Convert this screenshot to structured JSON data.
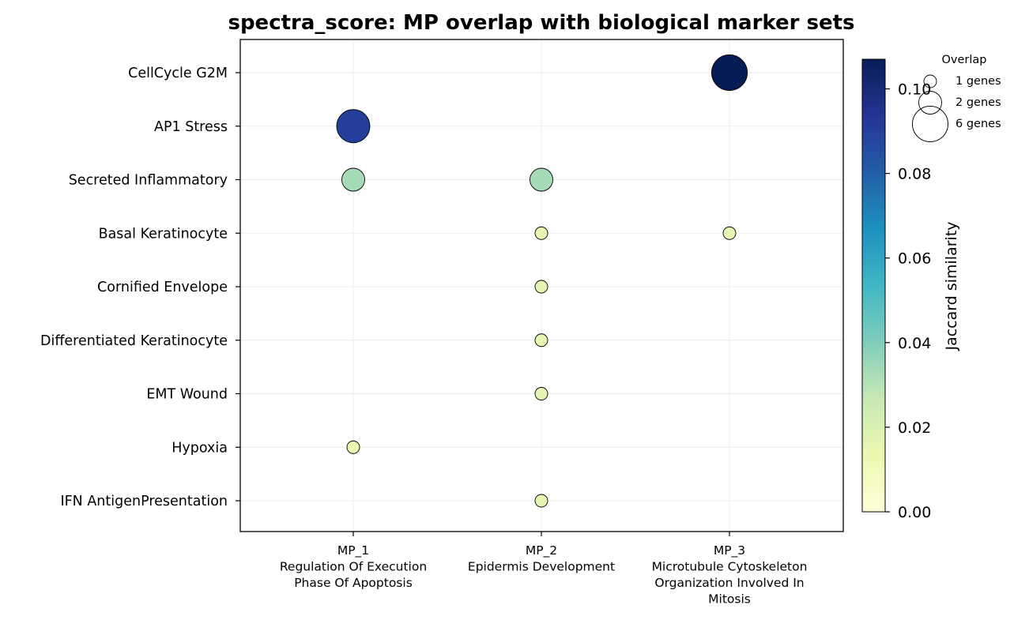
{
  "chart_data": {
    "type": "scatter",
    "title": "spectra_score: MP overlap with biological marker sets",
    "x_categories": [
      [
        "MP_1",
        "Regulation Of Execution",
        "Phase Of Apoptosis"
      ],
      [
        "MP_2",
        "Epidermis Development"
      ],
      [
        "MP_3",
        "Microtubule Cytoskeleton",
        "Organization Involved In",
        "Mitosis"
      ]
    ],
    "y_categories": [
      "CellCycle G2M",
      "AP1 Stress",
      "Secreted Inflammatory",
      "Basal Keratinocyte",
      "Cornified Envelope",
      "Differentiated Keratinocyte",
      "EMT Wound",
      "Hypoxia",
      "IFN AntigenPresentation"
    ],
    "points": [
      {
        "x": "MP_3",
        "y": "CellCycle G2M",
        "overlap_genes": 6,
        "jaccard": 0.107
      },
      {
        "x": "MP_1",
        "y": "AP1 Stress",
        "overlap_genes": 5,
        "jaccard": 0.09
      },
      {
        "x": "MP_1",
        "y": "Secreted Inflammatory",
        "overlap_genes": 2,
        "jaccard": 0.033
      },
      {
        "x": "MP_2",
        "y": "Secreted Inflammatory",
        "overlap_genes": 2,
        "jaccard": 0.033
      },
      {
        "x": "MP_2",
        "y": "Basal Keratinocyte",
        "overlap_genes": 1,
        "jaccard": 0.016
      },
      {
        "x": "MP_3",
        "y": "Basal Keratinocyte",
        "overlap_genes": 1,
        "jaccard": 0.016
      },
      {
        "x": "MP_2",
        "y": "Cornified Envelope",
        "overlap_genes": 1,
        "jaccard": 0.016
      },
      {
        "x": "MP_2",
        "y": "Differentiated Keratinocyte",
        "overlap_genes": 1,
        "jaccard": 0.016
      },
      {
        "x": "MP_2",
        "y": "EMT Wound",
        "overlap_genes": 1,
        "jaccard": 0.016
      },
      {
        "x": "MP_1",
        "y": "Hypoxia",
        "overlap_genes": 1,
        "jaccard": 0.013
      },
      {
        "x": "MP_2",
        "y": "IFN AntigenPresentation",
        "overlap_genes": 1,
        "jaccard": 0.016
      }
    ],
    "colorbar": {
      "label": "Jaccard similarity",
      "range": [
        0,
        0.107
      ],
      "ticks": [
        "0.00",
        "0.02",
        "0.04",
        "0.06",
        "0.08",
        "0.10"
      ],
      "colormap": "YlGnBu",
      "stops": [
        "#ffffd9",
        "#edf8b1",
        "#c7e9b4",
        "#7fcdbb",
        "#41b6c4",
        "#1d91c0",
        "#225ea8",
        "#253494",
        "#081d58"
      ]
    },
    "size_legend": {
      "title": "Overlap",
      "entries": [
        {
          "genes": 1,
          "label": "1 genes"
        },
        {
          "genes": 2,
          "label": "2 genes"
        },
        {
          "genes": 6,
          "label": "6 genes"
        }
      ]
    },
    "grid": true
  }
}
